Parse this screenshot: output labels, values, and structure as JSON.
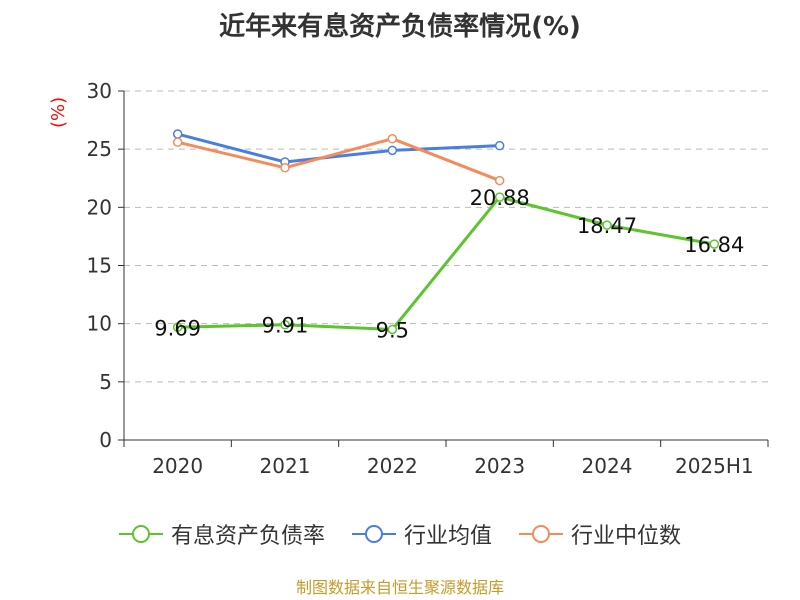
{
  "chart_data": {
    "type": "line",
    "title": "近年来有息资产负债率情况(%)",
    "ylabel": "(%)",
    "categories": [
      "2020",
      "2021",
      "2022",
      "2023",
      "2024",
      "2025H1"
    ],
    "ylim": [
      0,
      30
    ],
    "yticks": [
      0,
      5,
      10,
      15,
      20,
      25,
      30
    ],
    "grid": true,
    "legend_position": "bottom",
    "series": [
      {
        "name": "有息资产负债率",
        "color": "#5cc42e",
        "values": [
          9.69,
          9.91,
          9.5,
          20.88,
          18.47,
          16.84
        ],
        "labels": [
          "9.69",
          "9.91",
          "9.5",
          "20.88",
          "18.47",
          "16.84"
        ]
      },
      {
        "name": "行业均值",
        "color": "#4a7de0",
        "values": [
          26.3,
          23.9,
          24.9,
          25.3,
          null,
          null
        ]
      },
      {
        "name": "行业中位数",
        "color": "#f58b5b",
        "values": [
          25.6,
          23.4,
          25.9,
          22.3,
          null,
          null
        ]
      }
    ]
  },
  "source": "制图数据来自恒生聚源数据库"
}
